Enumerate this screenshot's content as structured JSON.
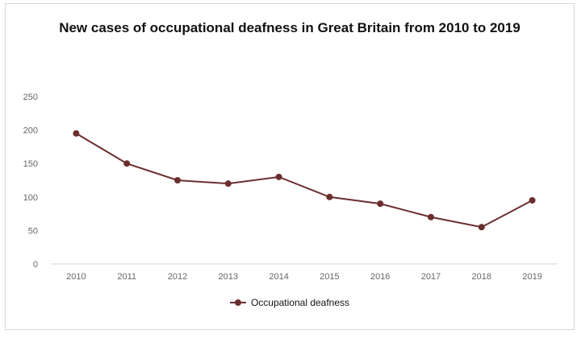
{
  "chart_data": {
    "type": "line",
    "title": "New cases of occupational deafness in Great Britain from 2010 to 2019",
    "categories": [
      "2010",
      "2011",
      "2012",
      "2013",
      "2014",
      "2015",
      "2016",
      "2017",
      "2018",
      "2019"
    ],
    "series": [
      {
        "name": "Occupational deafness",
        "values": [
          195,
          150,
          125,
          120,
          130,
          100,
          90,
          70,
          55,
          95
        ]
      }
    ],
    "xlabel": "",
    "ylabel": "",
    "ylim": [
      0,
      250
    ],
    "yticks": [
      "0",
      "50",
      "100",
      "150",
      "200",
      "250"
    ],
    "grid": false,
    "legend_position": "bottom",
    "colors": {
      "series": "#6b2e2e",
      "axis": "#c9d7e6",
      "tick_text": "#666666"
    }
  }
}
